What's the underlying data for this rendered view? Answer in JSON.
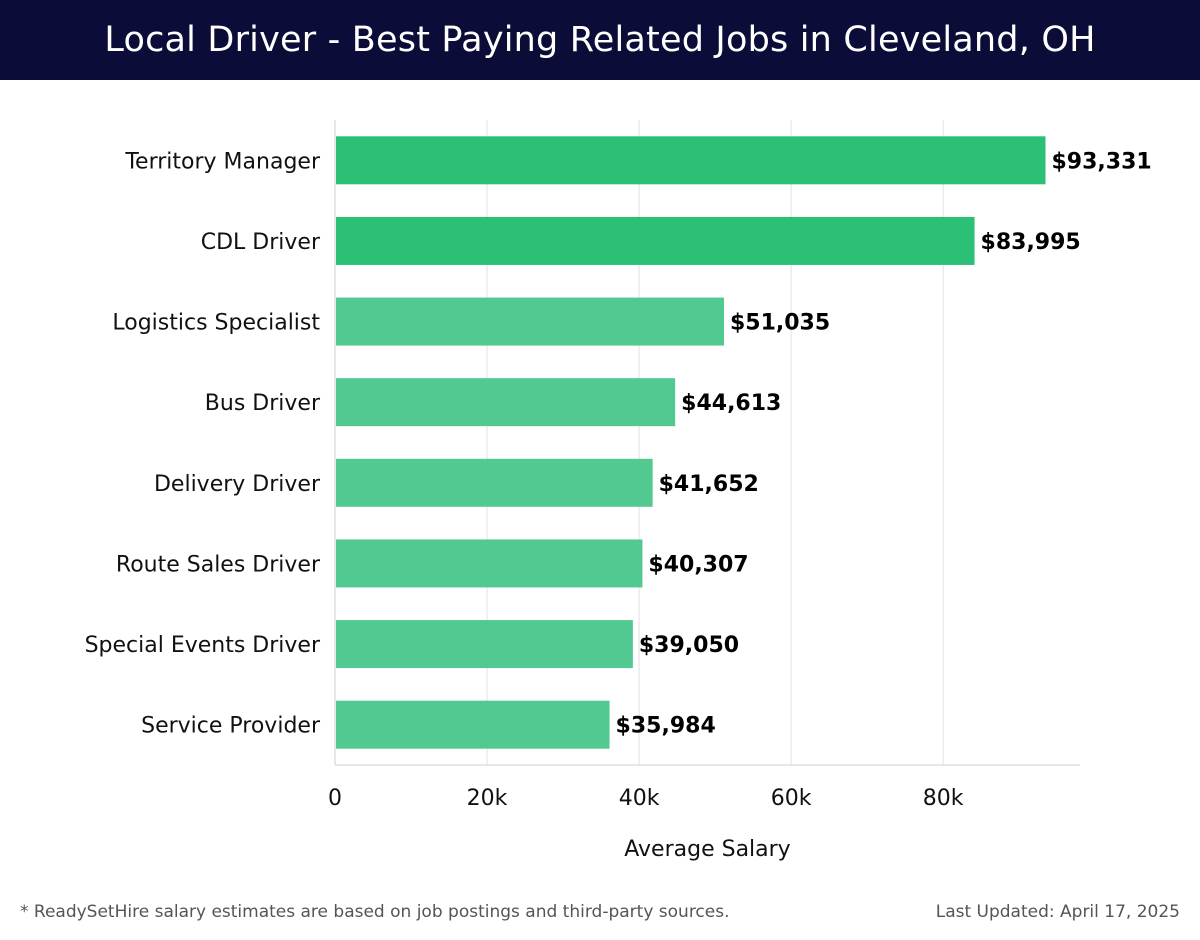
{
  "header": {
    "title": "Local Driver - Best Paying Related Jobs in Cleveland, OH"
  },
  "chart_data": {
    "type": "bar",
    "orientation": "horizontal",
    "title": "Local Driver - Best Paying Related Jobs in Cleveland, OH",
    "xlabel": "Average Salary",
    "ylabel": "",
    "xlim": [
      0,
      98000
    ],
    "xticks": [
      0,
      20000,
      40000,
      60000,
      80000
    ],
    "xtick_labels": [
      "0",
      "20k",
      "40k",
      "60k",
      "80k"
    ],
    "grid": true,
    "categories": [
      "Territory Manager",
      "CDL Driver",
      "Logistics Specialist",
      "Bus Driver",
      "Delivery Driver",
      "Route Sales Driver",
      "Special Events Driver",
      "Service Provider"
    ],
    "values": [
      93331,
      83995,
      51035,
      44613,
      41652,
      40307,
      39050,
      35984
    ],
    "value_labels": [
      "$93,331",
      "$83,995",
      "$51,035",
      "$44,613",
      "$41,652",
      "$40,307",
      "$39,050",
      "$35,984"
    ],
    "colors": {
      "top": "#2cbf76",
      "rest": "#52c990",
      "grid": "#e2e2e2",
      "axis": "#cfcfcf"
    },
    "top_count": 2
  },
  "footer": {
    "note": "* ReadySetHire salary estimates are based on job postings and third-party sources.",
    "updated": "Last Updated: April 17, 2025"
  }
}
